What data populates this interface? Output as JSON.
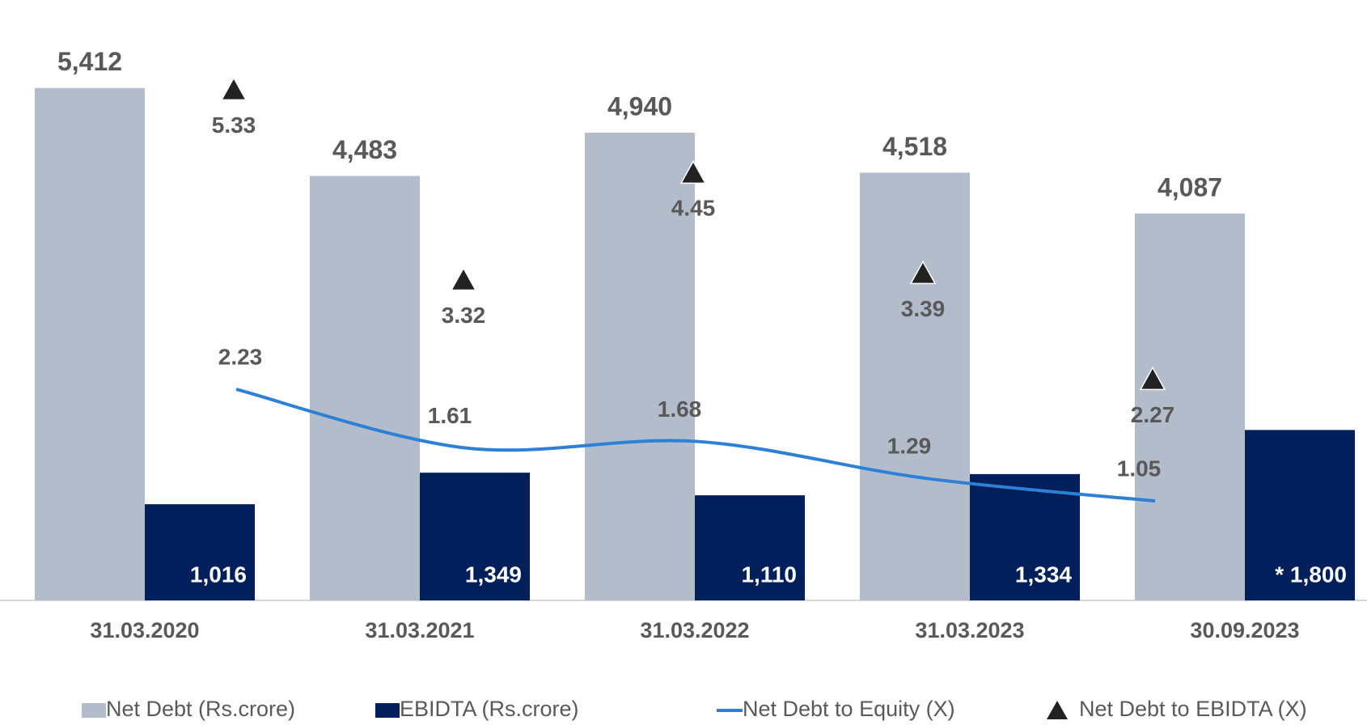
{
  "chart_data": {
    "type": "bar",
    "categories": [
      "31.03.2020",
      "31.03.2021",
      "31.03.2022",
      "31.03.2023",
      "30.09.2023"
    ],
    "ylim": [
      0,
      6000
    ],
    "y2lim": [
      0,
      6
    ],
    "series": [
      {
        "name": "Net Debt (Rs.crore)",
        "color": "#b2bccb",
        "values": [
          5412,
          4483,
          4940,
          4518,
          4087
        ],
        "value_labels": [
          "5,412",
          "4,483",
          "4,940",
          "4,518",
          "4,087"
        ]
      },
      {
        "name": "EBIDTA (Rs.crore)",
        "color": "#001f5b",
        "values": [
          1016,
          1349,
          1110,
          1334,
          1800
        ],
        "value_labels": [
          "1,016",
          "1,349",
          "1,110",
          "1,334",
          "* 1,800"
        ]
      },
      {
        "name": "Net Debt to Equity (X)",
        "type": "line",
        "axis": "y2",
        "color": "#2e7fd6",
        "values": [
          2.23,
          1.61,
          1.68,
          1.29,
          1.05
        ]
      },
      {
        "name": "Net Debt to EBIDTA (X)",
        "type": "scatter",
        "axis": "y2",
        "color": "#222222",
        "values": [
          5.33,
          3.32,
          4.45,
          3.39,
          2.27
        ]
      }
    ],
    "legend": "bottom"
  }
}
